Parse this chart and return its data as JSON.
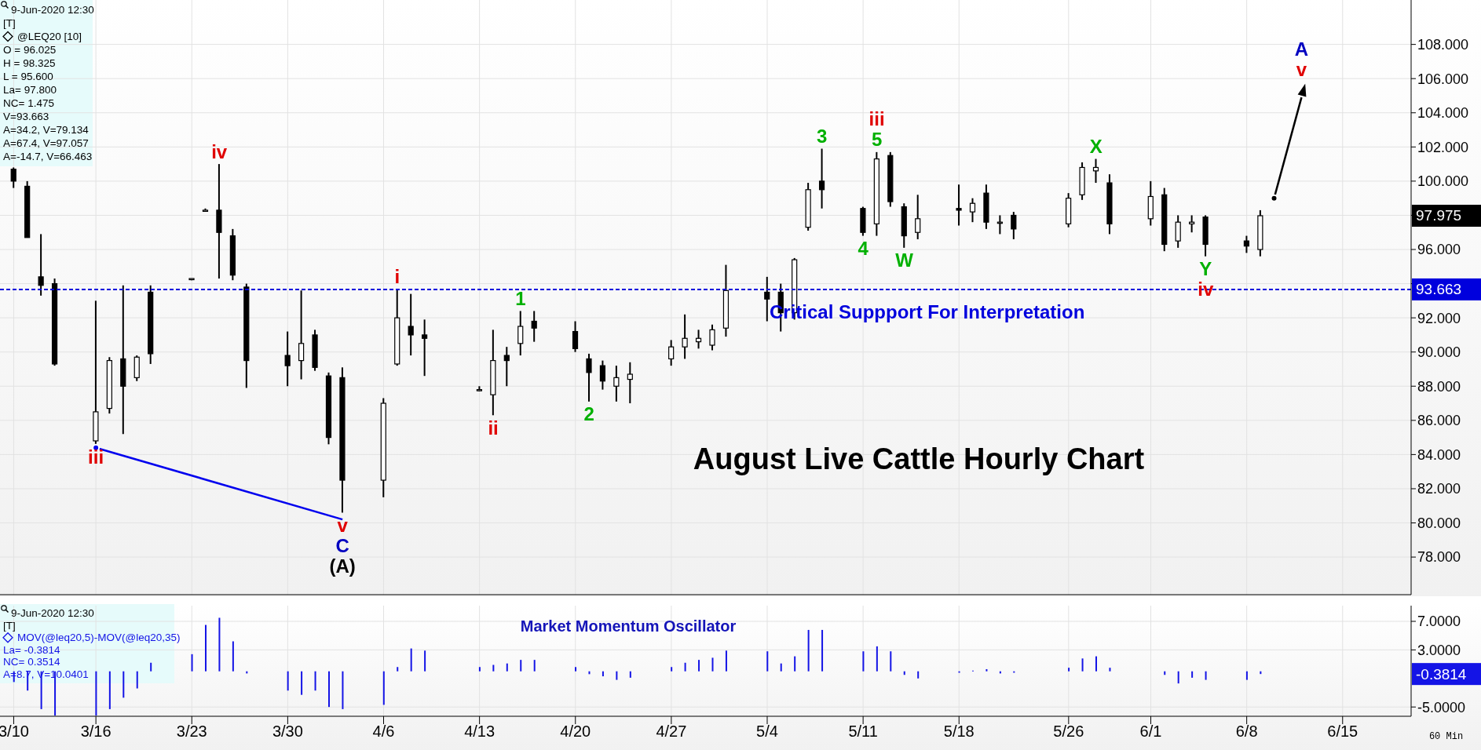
{
  "chart_data": [
    {
      "type": "candlestick",
      "title": "August Live Cattle Hourly Chart",
      "color": "#000000",
      "x": [
        "--03-10",
        "--03-11",
        "--03-12",
        "--03-13",
        "--03-16",
        "--03-17",
        "--03-18",
        "--03-19",
        "--03-20",
        "--03-23",
        "--03-24",
        "--03-25",
        "--03-26",
        "--03-27",
        "--03-30",
        "--03-31",
        "--04-01",
        "--04-02",
        "--04-03",
        "--04-06",
        "--04-07",
        "--04-08",
        "--04-09",
        "--04-13",
        "--04-14",
        "--04-15",
        "--04-16",
        "--04-17",
        "--04-20",
        "--04-21",
        "--04-22",
        "--04-23",
        "--04-24",
        "--04-27",
        "--04-28",
        "--04-29",
        "--04-30",
        "--05-01",
        "--05-04",
        "--05-05",
        "--05-06",
        "--05-07",
        "--05-08",
        "--05-11",
        "--05-12",
        "--05-13",
        "--05-14",
        "--05-15",
        "--05-18",
        "--05-19",
        "--05-20",
        "--05-21",
        "--05-22",
        "--05-26",
        "--05-27",
        "--05-28",
        "--05-29",
        "--06-01",
        "--06-02",
        "--06-03",
        "--06-04",
        "--06-05",
        "--06-08",
        "--06-09"
      ],
      "ohlc": [
        [
          100.7,
          100.8,
          99.6,
          100.0
        ],
        [
          99.7,
          100.0,
          96.7,
          96.7
        ],
        [
          94.4,
          96.9,
          93.3,
          93.9
        ],
        [
          94.0,
          94.3,
          89.2,
          89.3
        ],
        [
          84.8,
          93.0,
          84.6,
          86.5
        ],
        [
          86.7,
          89.7,
          86.4,
          89.5
        ],
        [
          89.6,
          93.9,
          85.2,
          88.0
        ],
        [
          88.5,
          89.8,
          88.3,
          89.7
        ],
        [
          93.5,
          93.9,
          89.3,
          89.9
        ],
        [
          94.3,
          94.3,
          94.2,
          94.3
        ],
        [
          98.3,
          98.4,
          98.3,
          98.3
        ],
        [
          98.3,
          101.0,
          94.3,
          97.0
        ],
        [
          96.8,
          97.2,
          94.2,
          94.5
        ],
        [
          93.8,
          94.0,
          87.9,
          89.5
        ],
        [
          89.8,
          91.2,
          88.0,
          89.2
        ],
        [
          89.5,
          93.6,
          88.4,
          90.5
        ],
        [
          91.0,
          91.3,
          88.9,
          89.1
        ],
        [
          88.6,
          88.8,
          84.6,
          85.0
        ],
        [
          88.5,
          89.1,
          80.6,
          82.5
        ],
        [
          82.5,
          87.3,
          81.5,
          87.0
        ],
        [
          89.3,
          93.7,
          89.2,
          92.0
        ],
        [
          91.5,
          93.4,
          89.8,
          91.0
        ],
        [
          91.0,
          91.9,
          88.6,
          90.8
        ],
        [
          87.8,
          88.0,
          87.7,
          87.8
        ],
        [
          87.5,
          91.3,
          86.3,
          89.5
        ],
        [
          89.8,
          90.3,
          88.0,
          89.5
        ],
        [
          90.5,
          92.4,
          89.8,
          91.5
        ],
        [
          91.8,
          92.4,
          90.6,
          91.4
        ],
        [
          91.2,
          91.8,
          90.0,
          90.2
        ],
        [
          89.6,
          89.9,
          87.1,
          88.8
        ],
        [
          89.2,
          89.5,
          87.8,
          88.3
        ],
        [
          88.0,
          89.2,
          87.1,
          88.5
        ],
        [
          88.4,
          89.4,
          87.0,
          88.7
        ],
        [
          89.6,
          90.7,
          89.2,
          90.3
        ],
        [
          90.3,
          92.2,
          89.6,
          90.8
        ],
        [
          90.6,
          91.3,
          90.2,
          90.8
        ],
        [
          90.4,
          91.6,
          90.1,
          91.3
        ],
        [
          91.4,
          95.1,
          90.9,
          93.6
        ],
        [
          93.5,
          94.4,
          91.8,
          93.1
        ],
        [
          93.5,
          94.0,
          91.2,
          92.3
        ],
        [
          92.3,
          95.5,
          91.9,
          95.4
        ],
        [
          97.3,
          99.9,
          97.1,
          99.5
        ],
        [
          100.0,
          101.9,
          98.4,
          99.5
        ],
        [
          98.4,
          98.5,
          96.8,
          97.0
        ],
        [
          97.5,
          101.7,
          96.8,
          101.3
        ],
        [
          101.5,
          101.7,
          98.5,
          98.8
        ],
        [
          98.5,
          98.7,
          96.1,
          96.8
        ],
        [
          97.0,
          99.2,
          96.6,
          97.8
        ],
        [
          98.4,
          99.8,
          97.4,
          98.3
        ],
        [
          98.2,
          99.0,
          97.6,
          98.7
        ],
        [
          99.3,
          99.8,
          97.2,
          97.6
        ],
        [
          97.6,
          98.0,
          96.9,
          97.6
        ],
        [
          98.0,
          98.2,
          96.6,
          97.2
        ],
        [
          97.5,
          99.3,
          97.3,
          99.0
        ],
        [
          99.2,
          101.1,
          98.9,
          100.8
        ],
        [
          100.6,
          101.3,
          99.9,
          100.8
        ],
        [
          99.9,
          100.4,
          96.9,
          97.5
        ],
        [
          97.8,
          100.0,
          97.4,
          99.1
        ],
        [
          99.2,
          99.6,
          95.9,
          96.3
        ],
        [
          96.5,
          98.0,
          96.1,
          97.6
        ],
        [
          97.5,
          98.0,
          97.0,
          97.6
        ],
        [
          97.9,
          98.0,
          95.6,
          96.3
        ],
        [
          96.5,
          96.8,
          95.8,
          96.2
        ],
        [
          96.0,
          98.3,
          95.6,
          97.975
        ]
      ],
      "value_labels": [
        null,
        null,
        null,
        null,
        null,
        null,
        null,
        null,
        null,
        null,
        null,
        null,
        null,
        null,
        null,
        null,
        null,
        null,
        null,
        null,
        null,
        null,
        null,
        null,
        null,
        null,
        null,
        null,
        null,
        null,
        null,
        null,
        null,
        null,
        null,
        null,
        null,
        null,
        null,
        null,
        null,
        null,
        null,
        null,
        null,
        null,
        null,
        null,
        null,
        null,
        null,
        null,
        null,
        null,
        null,
        null,
        null,
        null,
        null,
        null,
        null,
        null,
        null,
        "97.975"
      ],
      "series": [
        {
          "type": "line",
          "color": "#0000ee",
          "x": [
            "--03-16",
            "--04-03"
          ],
          "values": [
            84.4,
            80.2
          ]
        },
        {
          "type": "line",
          "color": "#000000",
          "x": [
            "--06-10",
            "--06-12"
          ],
          "values": [
            99.0,
            104.9
          ]
        }
      ],
      "xlim": [
        "--03-09",
        "--06-20"
      ],
      "xticks": [
        {
          "value": "--03-10",
          "label": "3/10"
        },
        {
          "value": "--03-16",
          "label": "3/16"
        },
        {
          "value": "--03-23",
          "label": "3/23"
        },
        {
          "value": "--03-30",
          "label": "3/30"
        },
        {
          "value": "--04-06",
          "label": "4/6"
        },
        {
          "value": "--04-13",
          "label": "4/13"
        },
        {
          "value": "--04-20",
          "label": "4/20"
        },
        {
          "value": "--04-27",
          "label": "4/27"
        },
        {
          "value": "--05-04",
          "label": "5/4"
        },
        {
          "value": "--05-11",
          "label": "5/11"
        },
        {
          "value": "--05-18",
          "label": "5/18"
        },
        {
          "value": "--05-26",
          "label": "5/26"
        },
        {
          "value": "--06-01",
          "label": "6/1"
        },
        {
          "value": "--06-08",
          "label": "6/8"
        },
        {
          "value": "--06-15",
          "label": "6/15"
        }
      ],
      "ylim": [
        75.8,
        110.6
      ],
      "yticks": [
        {
          "value": 78,
          "label": "78.000"
        },
        {
          "value": 80,
          "label": "80.000"
        },
        {
          "value": 82,
          "label": "82.000"
        },
        {
          "value": 84,
          "label": "84.000"
        },
        {
          "value": 86,
          "label": "86.000"
        },
        {
          "value": 88,
          "label": "88.000"
        },
        {
          "value": 90,
          "label": "90.000"
        },
        {
          "value": 92,
          "label": "92.000"
        },
        {
          "value": 94,
          "label": null
        },
        {
          "value": 96,
          "label": "96.000"
        },
        {
          "value": 98,
          "label": null
        },
        {
          "value": 100,
          "label": "100.000"
        },
        {
          "value": 102,
          "label": "102.000"
        },
        {
          "value": 104,
          "label": "104.000"
        },
        {
          "value": 106,
          "label": "106.000"
        },
        {
          "value": 108,
          "label": "108.000"
        }
      ],
      "tick_labels": "y",
      "grid": true,
      "ref_lines": [
        {
          "axis": "y",
          "value": 93.663,
          "label": "Critical Suppport For Interpretation",
          "color": "#0000dd",
          "line_style": "dashed"
        }
      ],
      "annotations": [
        "9-Jun-2020 12:30",
        "[T]",
        "@LEQ20 [10]",
        "O = 96.025",
        "H = 98.325",
        "L = 95.600",
        "La= 97.800",
        "NC= 1.475",
        "V=93.663",
        "A=34.2, V=79.134",
        "A=67.4, V=97.057",
        "A=-14.7, V=66.463",
        {
          "text": "iv",
          "x": "--03-25",
          "y": 101.0
        },
        {
          "text": "iii",
          "x": "--03-16",
          "y": 84.6
        },
        {
          "text": "v",
          "x": "--04-03",
          "y": 80.6
        },
        {
          "text": "C",
          "x": "--04-03",
          "y": 80.6
        },
        {
          "text": "(A)",
          "x": "--04-03",
          "y": 80.6
        },
        {
          "text": "i",
          "x": "--04-07",
          "y": 93.7
        },
        {
          "text": "ii",
          "x": "--04-14",
          "y": 86.3
        },
        {
          "text": "1",
          "x": "--04-16",
          "y": 92.4
        },
        {
          "text": "2",
          "x": "--04-21",
          "y": 87.1
        },
        {
          "text": "3",
          "x": "--05-08",
          "y": 101.9
        },
        {
          "text": "5",
          "x": "--05-12",
          "y": 101.7
        },
        {
          "text": "iii",
          "x": "--05-12",
          "y": 101.7
        },
        {
          "text": "4",
          "x": "--05-11",
          "y": 96.8
        },
        {
          "text": "W",
          "x": "--05-14",
          "y": 96.1
        },
        {
          "text": "X",
          "x": "--05-28",
          "y": 101.3
        },
        {
          "text": "Y",
          "x": "--06-05",
          "y": 95.6
        },
        {
          "text": "iv",
          "x": "--06-05",
          "y": 95.6
        },
        {
          "text": "v",
          "x": "--06-12",
          "y": 104.9
        },
        {
          "text": "A",
          "x": "--06-12",
          "y": 104.9
        },
        {
          "text": "93.663",
          "x": "--06-20",
          "y": 93.663
        }
      ]
    },
    {
      "type": "bar",
      "title": "Market Momentum Oscillator",
      "xlabel": "60 Min",
      "x": [
        "--03-10",
        "--03-11",
        "--03-12",
        "--03-13",
        "--03-16",
        "--03-17",
        "--03-18",
        "--03-19",
        "--03-20",
        "--03-23",
        "--03-24",
        "--03-25",
        "--03-26",
        "--03-27",
        "--03-30",
        "--03-31",
        "--04-01",
        "--04-02",
        "--04-03",
        "--04-06",
        "--04-07",
        "--04-08",
        "--04-09",
        "--04-13",
        "--04-14",
        "--04-15",
        "--04-16",
        "--04-17",
        "--04-20",
        "--04-21",
        "--04-22",
        "--04-23",
        "--04-24",
        "--04-27",
        "--04-28",
        "--04-29",
        "--04-30",
        "--05-01",
        "--05-04",
        "--05-05",
        "--05-06",
        "--05-07",
        "--05-08",
        "--05-11",
        "--05-12",
        "--05-13",
        "--05-14",
        "--05-15",
        "--05-18",
        "--05-19",
        "--05-20",
        "--05-21",
        "--05-22",
        "--05-26",
        "--05-27",
        "--05-28",
        "--05-29",
        "--06-01",
        "--06-02",
        "--06-03",
        "--06-04",
        "--06-05",
        "--06-08",
        "--06-09"
      ],
      "series": [
        {
          "name": "MOV(@leq20,5)-MOV(@leq20,35)",
          "color": "#1414e6",
          "values": [
            -1.5,
            -2.7,
            -5.3,
            -6.2,
            -6.2,
            -5.3,
            -3.7,
            -2.4,
            1.2,
            2.4,
            6.5,
            7.5,
            4.2,
            -0.3,
            -2.7,
            -3.3,
            -2.7,
            -5.0,
            -5.3,
            -4.7,
            0.6,
            3.2,
            2.9,
            0.6,
            0.9,
            1.1,
            1.6,
            1.6,
            0.6,
            -0.4,
            -0.7,
            -1.2,
            -0.9,
            0.6,
            1.2,
            1.6,
            1.9,
            2.9,
            2.8,
            1.1,
            2.1,
            5.8,
            5.8,
            2.8,
            3.5,
            2.8,
            -0.5,
            -1.0,
            -0.2,
            0.1,
            0.3,
            -0.3,
            -0.2,
            0.5,
            1.8,
            2.1,
            0.5,
            0.0,
            -0.5,
            -1.7,
            -0.9,
            -1.2,
            -1.2,
            -0.3814
          ]
        }
      ],
      "xlim": [
        "--03-09",
        "--06-20"
      ],
      "xticks": [
        {
          "value": "--03-10",
          "label": "3/10"
        },
        {
          "value": "--03-16",
          "label": "3/16"
        },
        {
          "value": "--03-23",
          "label": "3/23"
        },
        {
          "value": "--03-30",
          "label": "3/30"
        },
        {
          "value": "--04-06",
          "label": "4/6"
        },
        {
          "value": "--04-13",
          "label": "4/13"
        },
        {
          "value": "--04-20",
          "label": "4/20"
        },
        {
          "value": "--04-27",
          "label": "4/27"
        },
        {
          "value": "--05-04",
          "label": "5/4"
        },
        {
          "value": "--05-11",
          "label": "5/11"
        },
        {
          "value": "--05-18",
          "label": "5/18"
        },
        {
          "value": "--05-26",
          "label": "5/26"
        },
        {
          "value": "--06-01",
          "label": "6/1"
        },
        {
          "value": "--06-08",
          "label": "6/8"
        },
        {
          "value": "--06-15",
          "label": "6/15"
        }
      ],
      "ylim": [
        -6.3,
        9.2
      ],
      "yticks": [
        {
          "value": -5,
          "label": "-5.0000"
        },
        {
          "value": 3,
          "label": "3.0000"
        },
        {
          "value": 7,
          "label": "7.0000"
        }
      ],
      "grid": true,
      "annotations": [
        "9-Jun-2020 12:30",
        "[T]",
        "La= -0.3814",
        "NC= 0.3514",
        "A=8.7, V=10.0401",
        "-0.3814"
      ]
    }
  ]
}
